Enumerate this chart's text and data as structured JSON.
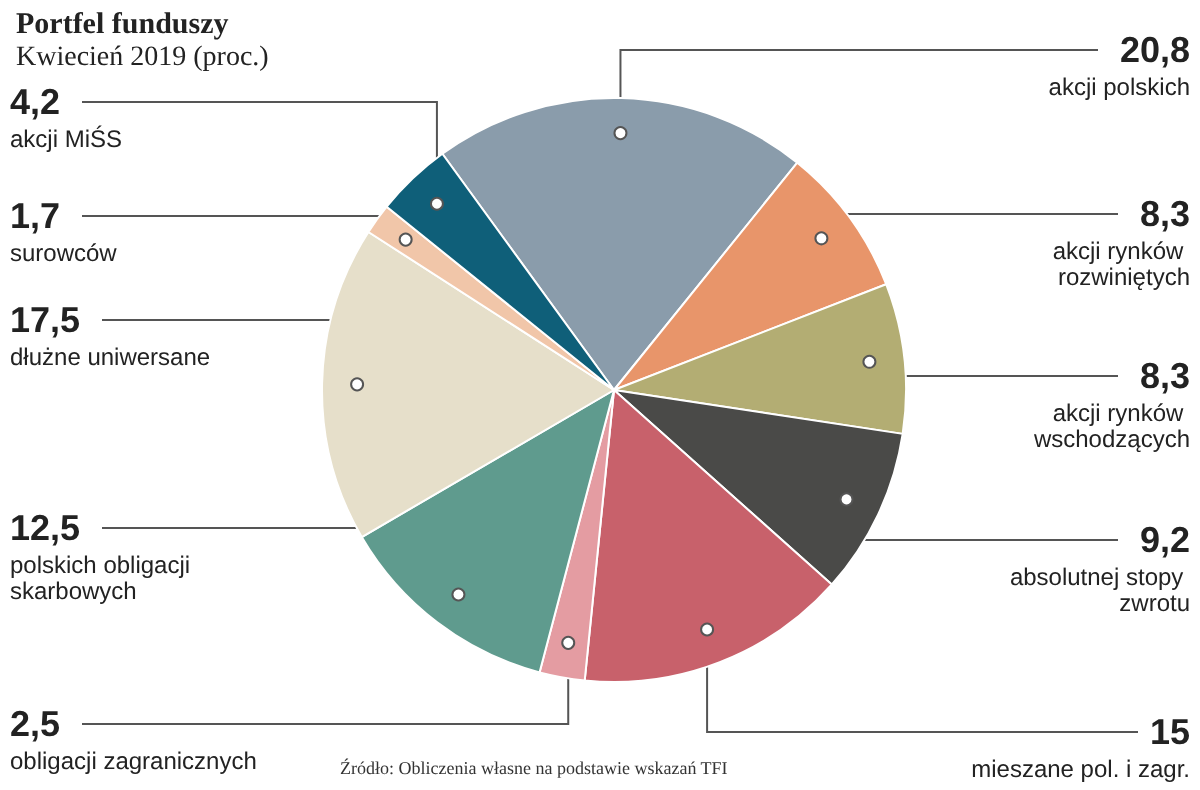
{
  "chart_data": {
    "type": "pie",
    "title": "Portfel funduszy",
    "subtitle": "Kwiecień 2019 (proc.)",
    "categories": [
      "akcji polskich",
      "akcji rynków rozwiniętych",
      "akcji rynków wschodzących",
      "absolutnej stopy zwrotu",
      "mieszane pol. i zagr.",
      "obligacji zagranicznych",
      "polskich obligacji skarbowych",
      "dłużne uniwersane",
      "surowców",
      "akcji MiŚS"
    ],
    "values": [
      20.8,
      8.3,
      8.3,
      9.2,
      15,
      2.5,
      12.5,
      17.5,
      1.7,
      4.2
    ],
    "value_labels": [
      "20,8",
      "8,3",
      "8,3",
      "9,2",
      "15",
      "2,5",
      "12,5",
      "17,5",
      "1,7",
      "4,2"
    ],
    "colors": [
      "#8a9cab",
      "#e8956a",
      "#b3ad73",
      "#4a4a48",
      "#c8616b",
      "#e49ca2",
      "#5f9b8e",
      "#e6dfca",
      "#f1c6a9",
      "#0f5f79"
    ],
    "annotations": [
      "Źródło: Obliczenia własne na podstawie wskazań TFI"
    ]
  }
}
